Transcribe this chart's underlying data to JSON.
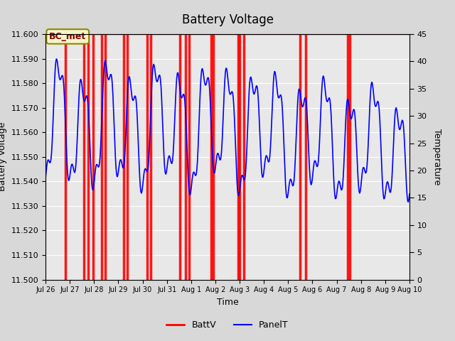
{
  "title": "Battery Voltage",
  "xlabel": "Time",
  "ylabel_left": "Battery Voltage",
  "ylabel_right": "Temperature",
  "ylim_left": [
    11.5,
    11.6
  ],
  "ylim_right": [
    0,
    45
  ],
  "yticks_left": [
    11.5,
    11.51,
    11.52,
    11.53,
    11.54,
    11.55,
    11.56,
    11.57,
    11.58,
    11.59,
    11.6
  ],
  "yticks_right": [
    0,
    5,
    10,
    15,
    20,
    25,
    30,
    35,
    40,
    45
  ],
  "bg_color": "#e8e8e8",
  "plot_bg_color": "#e0e0e0",
  "annotation_text": "BC_met",
  "annotation_color": "#8B0000",
  "annotation_bg": "#f5f5c8",
  "red_bar_positions": [
    0.055,
    0.105,
    0.118,
    0.13,
    0.155,
    0.165,
    0.215,
    0.225,
    0.28,
    0.29,
    0.37,
    0.385,
    0.395,
    0.455,
    0.46,
    0.53,
    0.533,
    0.545,
    0.7,
    0.715,
    0.83,
    0.835
  ],
  "xlim": [
    0,
    1
  ],
  "xtick_labels": [
    "Jul 26",
    "Jul 27",
    "Jul 28",
    "Jul 29",
    "Jul 30",
    "Jul 31",
    "Aug 1",
    "Aug 2",
    "Aug 3",
    "Aug 4",
    "Aug 5",
    "Aug 6",
    "Aug 7",
    "Aug 8",
    "Aug 9",
    "Aug 10"
  ],
  "xtick_positions": [
    0.0,
    0.0667,
    0.1333,
    0.2,
    0.2667,
    0.3333,
    0.4,
    0.4667,
    0.5333,
    0.6,
    0.6667,
    0.7333,
    0.8,
    0.8667,
    0.9333,
    1.0
  ]
}
